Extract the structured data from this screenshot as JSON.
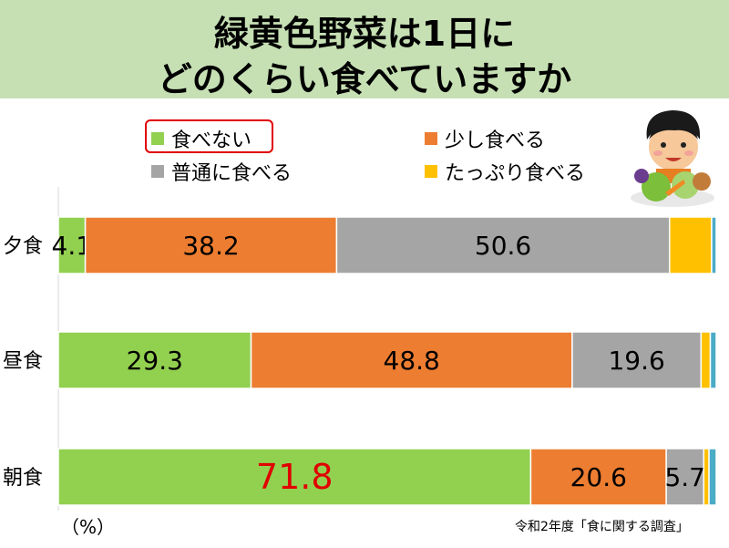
{
  "title": {
    "line1": "緑黄色野菜は1日に",
    "line2": "どのくらい食べていますか"
  },
  "legend": [
    {
      "label": "食べない",
      "color": "#92d050"
    },
    {
      "label": "少し食べる",
      "color": "#ed7d31"
    },
    {
      "label": "普通に食べる",
      "color": "#a5a5a5"
    },
    {
      "label": "たっぷり食べる",
      "color": "#ffc000"
    }
  ],
  "unit_label": "（%）",
  "source": "令和2年度「食に関する調査」",
  "colors": {
    "none": "#92d050",
    "little": "#ed7d31",
    "normal": "#a5a5a5",
    "plenty": "#ffc000",
    "other": "#4bacc6",
    "highlight": "#e00000",
    "title_band": "#c6e0b4"
  },
  "chart_data": {
    "type": "bar",
    "orientation": "horizontal",
    "stacked": true,
    "categories": [
      "夕食",
      "昼食",
      "朝食"
    ],
    "series": [
      {
        "name": "食べない",
        "values": [
          4.1,
          29.3,
          71.8
        ]
      },
      {
        "name": "少し食べる",
        "values": [
          38.2,
          48.8,
          20.6
        ]
      },
      {
        "name": "普通に食べる",
        "values": [
          50.6,
          19.6,
          5.7
        ]
      },
      {
        "name": "たっぷり食べる",
        "values": [
          6.4,
          1.4,
          0.8
        ]
      },
      {
        "name": "",
        "values": [
          0.7,
          0.9,
          1.1
        ]
      }
    ],
    "data_labels": [
      [
        "4.1",
        "38.2",
        "50.6",
        "",
        ""
      ],
      [
        "29.3",
        "48.8",
        "19.6",
        "",
        ""
      ],
      [
        "71.8",
        "20.6",
        "5.7",
        "",
        ""
      ]
    ],
    "xlim": [
      0,
      100
    ],
    "grid": false,
    "legend_position": "top"
  }
}
